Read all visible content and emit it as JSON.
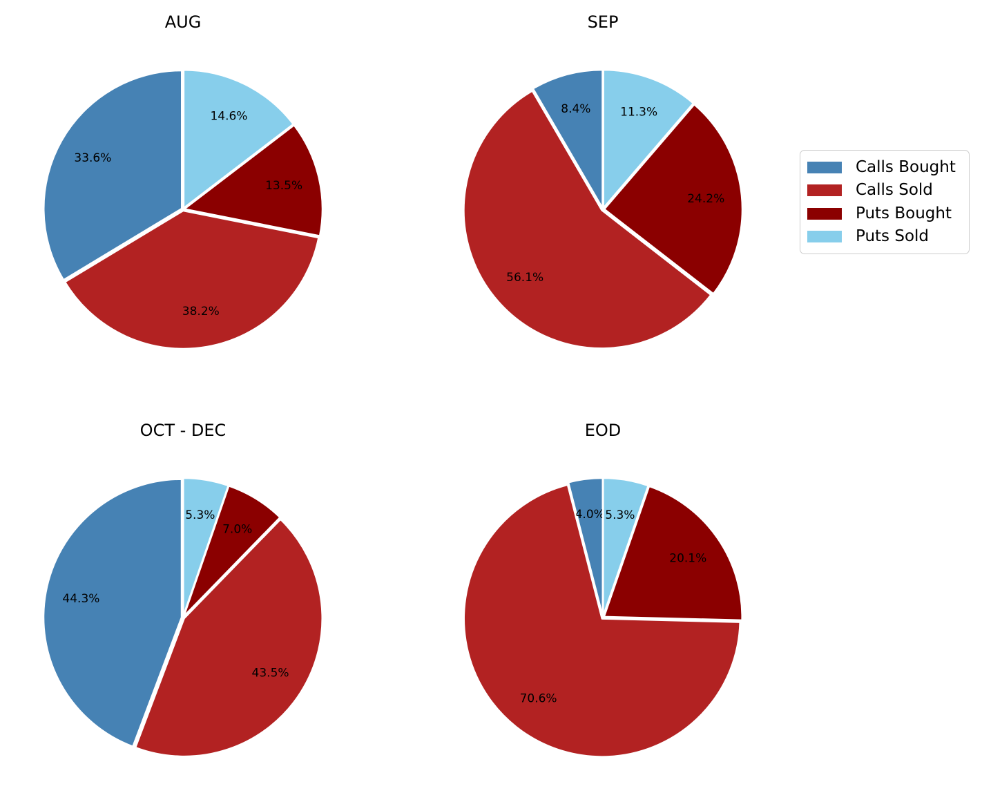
{
  "colors": {
    "calls_bought": "#4682B4",
    "calls_sold": "#B22222",
    "puts_bought": "#8B0000",
    "puts_sold": "#87CEEB"
  },
  "legend": {
    "position": "right",
    "entries": [
      {
        "label": "Calls Bought",
        "color_key": "calls_bought"
      },
      {
        "label": "Calls Sold",
        "color_key": "calls_sold"
      },
      {
        "label": "Puts Bought",
        "color_key": "puts_bought"
      },
      {
        "label": "Puts Sold",
        "color_key": "puts_sold"
      }
    ]
  },
  "chart_data": [
    {
      "type": "pie",
      "title": "AUG",
      "start_angle": 90,
      "counterclock": true,
      "slices": [
        {
          "label": "Calls Bought",
          "color_key": "calls_bought",
          "value": 33.6,
          "pct_label": "33.6%"
        },
        {
          "label": "Calls Sold",
          "color_key": "calls_sold",
          "value": 38.2,
          "pct_label": "38.2%"
        },
        {
          "label": "Puts Bought",
          "color_key": "puts_bought",
          "value": 13.5,
          "pct_label": "13.5%"
        },
        {
          "label": "Puts Sold",
          "color_key": "puts_sold",
          "value": 14.6,
          "pct_label": "14.6%"
        }
      ]
    },
    {
      "type": "pie",
      "title": "SEP",
      "start_angle": 90,
      "counterclock": true,
      "slices": [
        {
          "label": "Calls Bought",
          "color_key": "calls_bought",
          "value": 8.4,
          "pct_label": "8.4%"
        },
        {
          "label": "Calls Sold",
          "color_key": "calls_sold",
          "value": 56.1,
          "pct_label": "56.1%"
        },
        {
          "label": "Puts Bought",
          "color_key": "puts_bought",
          "value": 24.2,
          "pct_label": "24.2%"
        },
        {
          "label": "Puts Sold",
          "color_key": "puts_sold",
          "value": 11.3,
          "pct_label": "11.3%"
        }
      ]
    },
    {
      "type": "pie",
      "title": "OCT - DEC",
      "start_angle": 90,
      "counterclock": true,
      "slices": [
        {
          "label": "Calls Bought",
          "color_key": "calls_bought",
          "value": 44.3,
          "pct_label": "44.3%"
        },
        {
          "label": "Calls Sold",
          "color_key": "calls_sold",
          "value": 43.5,
          "pct_label": "43.5%"
        },
        {
          "label": "Puts Bought",
          "color_key": "puts_bought",
          "value": 7.0,
          "pct_label": "7.0%"
        },
        {
          "label": "Puts Sold",
          "color_key": "puts_sold",
          "value": 5.3,
          "pct_label": "5.3%"
        }
      ]
    },
    {
      "type": "pie",
      "title": "EOD",
      "start_angle": 90,
      "counterclock": true,
      "slices": [
        {
          "label": "Calls Bought",
          "color_key": "calls_bought",
          "value": 4.0,
          "pct_label": "4.0%"
        },
        {
          "label": "Calls Sold",
          "color_key": "calls_sold",
          "value": 70.6,
          "pct_label": "70.6%"
        },
        {
          "label": "Puts Bought",
          "color_key": "puts_bought",
          "value": 20.1,
          "pct_label": "20.1%"
        },
        {
          "label": "Puts Sold",
          "color_key": "puts_sold",
          "value": 5.3,
          "pct_label": "5.3%"
        }
      ]
    }
  ]
}
